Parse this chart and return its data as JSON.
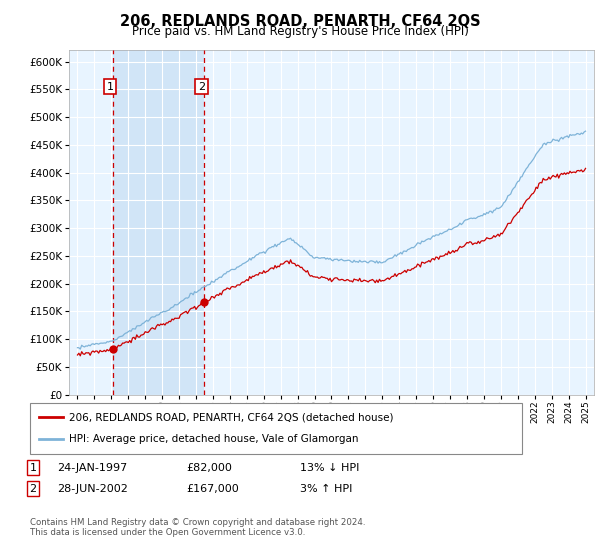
{
  "title": "206, REDLANDS ROAD, PENARTH, CF64 2QS",
  "subtitle": "Price paid vs. HM Land Registry's House Price Index (HPI)",
  "legend_line1": "206, REDLANDS ROAD, PENARTH, CF64 2QS (detached house)",
  "legend_line2": "HPI: Average price, detached house, Vale of Glamorgan",
  "table_rows": [
    {
      "num": "1",
      "date": "24-JAN-1997",
      "price": "£82,000",
      "hpi": "13% ↓ HPI"
    },
    {
      "num": "2",
      "date": "28-JUN-2002",
      "price": "£167,000",
      "hpi": "3% ↑ HPI"
    }
  ],
  "footnote": "Contains HM Land Registry data © Crown copyright and database right 2024.\nThis data is licensed under the Open Government Licence v3.0.",
  "sale1_year": 1997.07,
  "sale1_price": 82000,
  "sale2_year": 2002.49,
  "sale2_price": 167000,
  "hpi_color": "#7eb3d8",
  "price_color": "#cc0000",
  "vline_color": "#cc0000",
  "shade_color": "#ddeeff",
  "bg_color": "#e8f4ff",
  "plot_bg": "#ffffff",
  "ylim_min": 0,
  "ylim_max": 620000,
  "ytick_step": 50000,
  "xmin": 1994.5,
  "xmax": 2025.5
}
